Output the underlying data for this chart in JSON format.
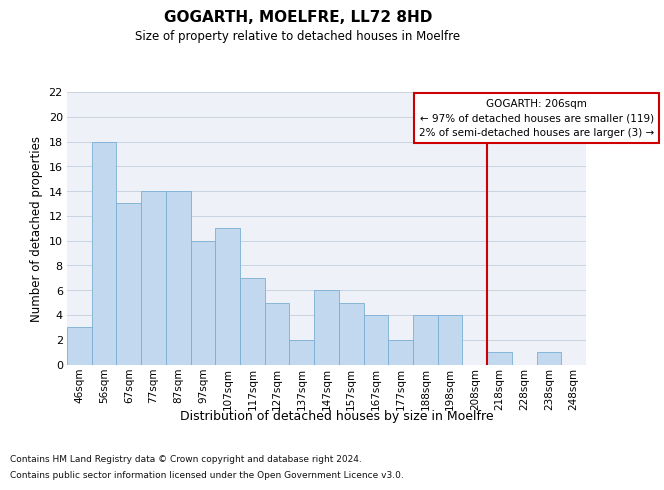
{
  "title": "GOGARTH, MOELFRE, LL72 8HD",
  "subtitle": "Size of property relative to detached houses in Moelfre",
  "xlabel": "Distribution of detached houses by size in Moelfre",
  "ylabel": "Number of detached properties",
  "bins": [
    "46sqm",
    "56sqm",
    "67sqm",
    "77sqm",
    "87sqm",
    "97sqm",
    "107sqm",
    "117sqm",
    "127sqm",
    "137sqm",
    "147sqm",
    "157sqm",
    "167sqm",
    "177sqm",
    "188sqm",
    "198sqm",
    "208sqm",
    "218sqm",
    "228sqm",
    "238sqm",
    "248sqm"
  ],
  "values": [
    3,
    18,
    13,
    14,
    14,
    10,
    11,
    7,
    5,
    2,
    6,
    5,
    4,
    2,
    4,
    4,
    0,
    1,
    0,
    1,
    0
  ],
  "bar_color": "#c2d8ee",
  "bar_edge_color": "#7aafd4",
  "grid_color": "#c8d4e0",
  "vline_x_index": 16,
  "vline_color": "#cc0000",
  "ann_line1": "GOGARTH: 206sqm",
  "ann_line2": "← 97% of detached houses are smaller (119)",
  "ann_line3": "2% of semi-detached houses are larger (3) →",
  "footnote_line1": "Contains HM Land Registry data © Crown copyright and database right 2024.",
  "footnote_line2": "Contains public sector information licensed under the Open Government Licence v3.0.",
  "ylim": [
    0,
    22
  ],
  "yticks": [
    0,
    2,
    4,
    6,
    8,
    10,
    12,
    14,
    16,
    18,
    20,
    22
  ],
  "plot_bg_color": "#eef2f8"
}
